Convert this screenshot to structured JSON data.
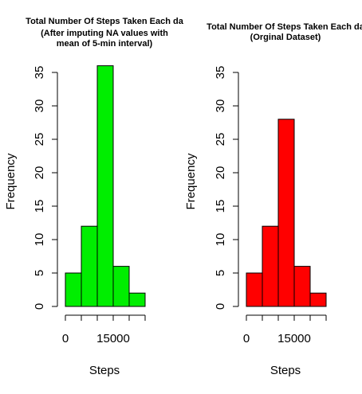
{
  "chart_data": [
    {
      "type": "bar",
      "title_lines": [
        "Total Number Of Steps Taken Each da",
        "(After imputing NA values with",
        "mean of 5-min interval)"
      ],
      "bins": [
        [
          0,
          5000
        ],
        [
          5000,
          10000
        ],
        [
          10000,
          15000
        ],
        [
          15000,
          20000
        ],
        [
          20000,
          25000
        ]
      ],
      "values": [
        5,
        12,
        36,
        6,
        2
      ],
      "xlabel": "Steps",
      "ylabel": "Frequency",
      "ylim": [
        0,
        35
      ],
      "yticks": [
        0,
        5,
        10,
        15,
        20,
        25,
        30,
        35
      ],
      "xlim": [
        0,
        25000
      ],
      "xtick_labels": [
        {
          "value": 0,
          "label": "0"
        },
        {
          "value": 15000,
          "label": "15000"
        }
      ],
      "color": "#00ee00"
    },
    {
      "type": "bar",
      "title_lines": [
        "Total Number Of Steps Taken Each da",
        "(Orginal Dataset)"
      ],
      "bins": [
        [
          0,
          5000
        ],
        [
          5000,
          10000
        ],
        [
          10000,
          15000
        ],
        [
          15000,
          20000
        ],
        [
          20000,
          25000
        ]
      ],
      "values": [
        5,
        12,
        28,
        6,
        2
      ],
      "xlabel": "Steps",
      "ylabel": "Frequency",
      "ylim": [
        0,
        35
      ],
      "yticks": [
        0,
        5,
        10,
        15,
        20,
        25,
        30,
        35
      ],
      "xlim": [
        0,
        25000
      ],
      "xtick_labels": [
        {
          "value": 0,
          "label": "0"
        },
        {
          "value": 15000,
          "label": "15000"
        }
      ],
      "color": "#ff0000"
    }
  ]
}
